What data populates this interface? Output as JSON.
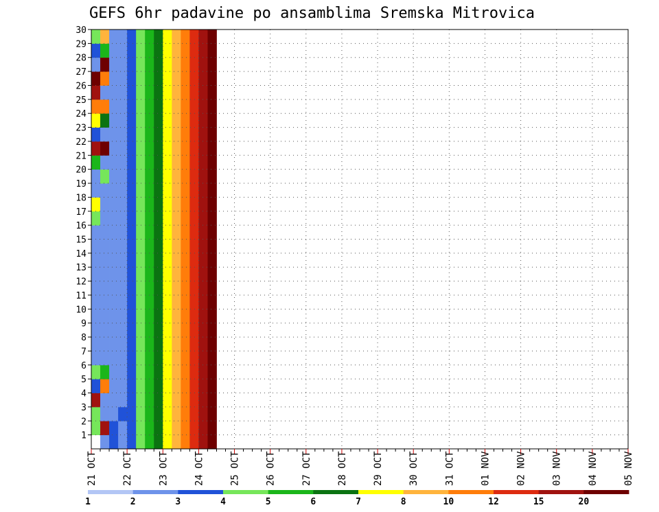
{
  "chart_data": {
    "type": "heatmap",
    "title": "GEFS 6hr padavine po ansamblima Sremska Mitrovica",
    "xlabel": "",
    "ylabel": "",
    "x_ticks": [
      "21 OCT",
      "22 OCT",
      "23 OCT",
      "24 OCT",
      "25 OCT",
      "26 OCT",
      "27 OCT",
      "28 OCT",
      "29 OCT",
      "30 OCT",
      "31 OCT",
      "01 NOV",
      "02 NOV",
      "03 NOV",
      "04 NOV",
      "05 NOV"
    ],
    "y_ticks": [
      "1",
      "2",
      "3",
      "4",
      "5",
      "6",
      "7",
      "8",
      "9",
      "10",
      "11",
      "12",
      "13",
      "14",
      "15",
      "16",
      "17",
      "18",
      "19",
      "20",
      "21",
      "22",
      "23",
      "24",
      "25",
      "26",
      "27",
      "28",
      "29",
      "30"
    ],
    "x_step_days": 0.25,
    "xlim_days": [
      0,
      15
    ],
    "ylim": [
      0,
      30
    ],
    "grid": true,
    "colorbar": {
      "colors": [
        "#b3c6f5",
        "#6e93ea",
        "#2052d8",
        "#76e65a",
        "#1bb61a",
        "#0b7311",
        "#ffff00",
        "#ffb43c",
        "#ff7d0a",
        "#dd2b10",
        "#a0120f",
        "#6e0000"
      ],
      "labels": [
        "1",
        "2",
        "3",
        "4",
        "5",
        "6",
        "7",
        "8",
        "10",
        "12",
        "15",
        "20"
      ]
    },
    "cells": [
      [
        -1,
        3,
        3,
        10,
        2,
        3,
        1,
        1,
        1,
        1,
        1,
        1,
        1,
        1,
        1,
        1,
        3,
        6,
        1,
        1,
        4,
        10,
        2,
        6,
        8,
        10,
        11,
        1,
        2,
        3
      ],
      [
        1,
        10,
        1,
        1,
        8,
        4,
        1,
        1,
        1,
        1,
        1,
        1,
        1,
        1,
        1,
        1,
        1,
        1,
        1,
        3,
        1,
        11,
        1,
        5,
        8,
        1,
        8,
        11,
        4,
        7
      ],
      [
        2,
        2,
        1,
        1,
        1,
        1,
        1,
        1,
        1,
        1,
        1,
        1,
        1,
        1,
        1,
        1,
        1,
        1,
        1,
        1,
        1,
        1,
        1,
        1,
        1,
        1,
        1,
        1,
        1,
        1
      ],
      [
        1,
        1,
        2,
        1,
        1,
        1,
        1,
        1,
        1,
        1,
        1,
        1,
        1,
        1,
        1,
        1,
        1,
        1,
        1,
        1,
        1,
        1,
        1,
        1,
        1,
        1,
        1,
        1,
        1,
        1
      ],
      [
        2,
        2,
        2,
        2,
        2,
        2,
        2,
        2,
        2,
        2,
        2,
        2,
        2,
        2,
        2,
        2,
        2,
        2,
        2,
        2,
        2,
        2,
        2,
        2,
        2,
        2,
        2,
        2,
        2,
        2
      ],
      [
        3,
        3,
        3,
        3,
        3,
        3,
        3,
        3,
        3,
        3,
        3,
        3,
        3,
        3,
        3,
        3,
        3,
        3,
        3,
        3,
        3,
        3,
        3,
        3,
        3,
        3,
        3,
        3,
        3,
        3
      ],
      [
        4,
        4,
        4,
        4,
        4,
        4,
        4,
        4,
        4,
        4,
        4,
        4,
        4,
        4,
        4,
        4,
        4,
        4,
        4,
        4,
        4,
        4,
        4,
        4,
        4,
        4,
        4,
        4,
        4,
        4
      ],
      [
        5,
        5,
        5,
        5,
        5,
        5,
        5,
        5,
        5,
        5,
        5,
        5,
        5,
        5,
        5,
        5,
        5,
        5,
        5,
        5,
        5,
        5,
        5,
        5,
        5,
        5,
        5,
        5,
        5,
        5
      ],
      [
        6,
        6,
        6,
        6,
        6,
        6,
        6,
        6,
        6,
        6,
        6,
        6,
        6,
        6,
        6,
        6,
        6,
        6,
        6,
        6,
        6,
        6,
        6,
        6,
        6,
        6,
        6,
        6,
        6,
        6
      ],
      [
        7,
        7,
        7,
        7,
        7,
        7,
        7,
        7,
        7,
        7,
        7,
        7,
        7,
        7,
        7,
        7,
        7,
        7,
        7,
        7,
        7,
        7,
        7,
        7,
        7,
        7,
        7,
        7,
        7,
        7
      ],
      [
        8,
        8,
        8,
        8,
        8,
        8,
        8,
        8,
        8,
        8,
        8,
        8,
        8,
        8,
        8,
        8,
        8,
        8,
        8,
        8,
        8,
        8,
        8,
        8,
        8,
        8,
        8,
        8,
        8,
        8
      ],
      [
        9,
        9,
        9,
        9,
        9,
        9,
        9,
        9,
        9,
        9,
        9,
        9,
        9,
        9,
        9,
        9,
        9,
        9,
        9,
        9,
        9,
        9,
        9,
        9,
        9,
        9,
        9,
        9,
        9,
        9
      ],
      [
        10,
        10,
        10,
        10,
        10,
        10,
        10,
        10,
        10,
        10,
        10,
        10,
        10,
        10,
        10,
        10,
        10,
        10,
        10,
        10,
        10,
        10,
        10,
        10,
        10,
        10,
        10,
        10,
        10,
        10
      ],
      [
        11,
        11,
        11,
        11,
        11,
        11,
        11,
        11,
        11,
        11,
        11,
        11,
        11,
        11,
        11,
        11,
        11,
        11,
        11,
        11,
        11,
        11,
        11,
        11,
        11,
        11,
        11,
        11,
        11,
        11
      ],
      [
        -1,
        -1,
        -1,
        -1,
        -1,
        -1,
        -1,
        -1,
        -1,
        -1,
        -1,
        -1,
        -1,
        -1,
        -1,
        -1,
        -1,
        -1,
        -1,
        -1,
        -1,
        -1,
        -1,
        -1,
        -1,
        -1,
        -1,
        -1,
        -1,
        -1
      ],
      [
        -1,
        -1,
        -1,
        -1,
        -1,
        -1,
        -1,
        -1,
        -1,
        -1,
        -1,
        -1,
        -1,
        -1,
        -1,
        -1,
        -1,
        -1,
        -1,
        -1,
        -1,
        -1,
        -1,
        -1,
        -1,
        -1,
        -1,
        -1,
        -1,
        -1
      ]
    ]
  }
}
